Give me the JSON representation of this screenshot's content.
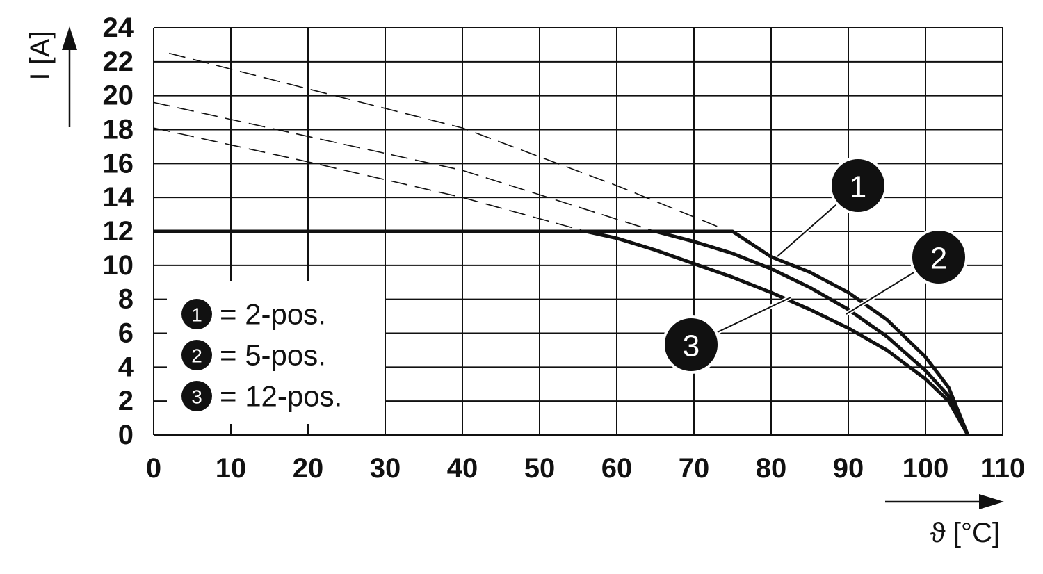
{
  "chart_data": {
    "type": "line",
    "x_label": "ϑ [°C]",
    "y_label": "I [A]",
    "xlim": [
      0,
      110
    ],
    "ylim": [
      0,
      24
    ],
    "xticks": [
      0,
      10,
      20,
      30,
      40,
      50,
      60,
      70,
      80,
      90,
      100,
      110
    ],
    "yticks": [
      0,
      2,
      4,
      6,
      8,
      10,
      12,
      14,
      16,
      18,
      20,
      22,
      24
    ],
    "grid": true,
    "series": [
      {
        "name": "= 2-pos.",
        "marker": "1",
        "color": "#111111",
        "style": "solid",
        "x": [
          0,
          75,
          80,
          85,
          90,
          95,
          100,
          103,
          105.5
        ],
        "values": [
          12,
          12,
          10.5,
          9.6,
          8.4,
          6.8,
          4.6,
          2.8,
          0
        ]
      },
      {
        "name": "= 5-pos.",
        "marker": "2",
        "color": "#111111",
        "style": "solid",
        "x": [
          0,
          65,
          70,
          75,
          80,
          85,
          90,
          95,
          100,
          103,
          105.5
        ],
        "values": [
          12,
          12,
          11.4,
          10.7,
          9.8,
          8.7,
          7.4,
          5.8,
          3.8,
          2.3,
          0
        ]
      },
      {
        "name": "= 12-pos.",
        "marker": "3",
        "color": "#111111",
        "style": "solid",
        "x": [
          0,
          56,
          60,
          65,
          70,
          75,
          80,
          85,
          90,
          95,
          100,
          103,
          105.5
        ],
        "values": [
          12,
          12,
          11.6,
          10.9,
          10.1,
          9.3,
          8.4,
          7.4,
          6.3,
          5,
          3.3,
          2,
          0
        ]
      },
      {
        "color": "#111111",
        "style": "dashed",
        "x": [
          2,
          20,
          40,
          60,
          73
        ],
        "values": [
          22.5,
          20.4,
          18.1,
          14.7,
          12.3
        ]
      },
      {
        "color": "#111111",
        "style": "dashed",
        "x": [
          0,
          20,
          40,
          65
        ],
        "values": [
          19.6,
          17.6,
          15.6,
          12
        ]
      },
      {
        "color": "#111111",
        "style": "dashed",
        "x": [
          0,
          20,
          40,
          56
        ],
        "values": [
          18.1,
          16.1,
          14.0,
          12
        ]
      }
    ]
  }
}
